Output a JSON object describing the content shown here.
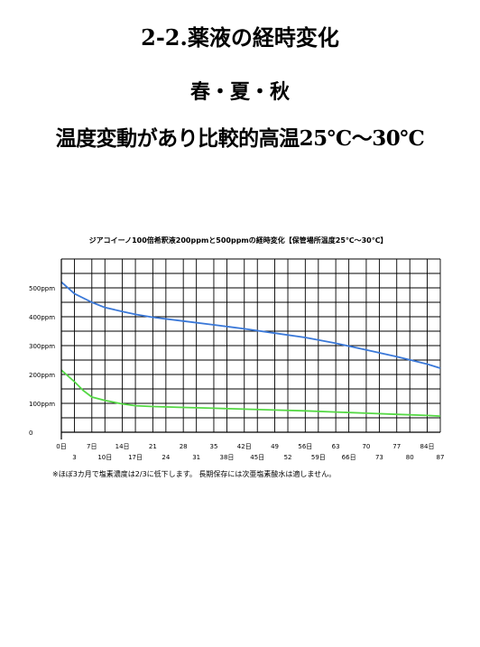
{
  "header": {
    "title": "2-2.薬液の経時変化",
    "season": "春・夏・秋",
    "subtitle": "温度変動があり比較的高温25℃～30℃"
  },
  "chart_data": {
    "type": "line",
    "title": "ジアコイーノ100倍希釈液200ppmと500ppmの経時変化【保管場所温度25℃～30℃】",
    "xlabel": "",
    "ylabel": "",
    "ylim": [
      0,
      600
    ],
    "xlim": [
      0,
      87
    ],
    "yticks": [
      {
        "value": 0,
        "label": "0"
      },
      {
        "value": 100,
        "label": "100ppm"
      },
      {
        "value": 200,
        "label": "200ppm"
      },
      {
        "value": 300,
        "label": "300ppm"
      },
      {
        "value": 400,
        "label": "400ppm"
      },
      {
        "value": 500,
        "label": "500ppm"
      }
    ],
    "xticks_row1": [
      {
        "value": 0,
        "label": "0日"
      },
      {
        "value": 7,
        "label": "7日"
      },
      {
        "value": 14,
        "label": "14日"
      },
      {
        "value": 21,
        "label": "21"
      },
      {
        "value": 28,
        "label": "28"
      },
      {
        "value": 35,
        "label": "35"
      },
      {
        "value": 42,
        "label": "42日"
      },
      {
        "value": 49,
        "label": "49"
      },
      {
        "value": 56,
        "label": "56日"
      },
      {
        "value": 63,
        "label": "63"
      },
      {
        "value": 70,
        "label": "70"
      },
      {
        "value": 77,
        "label": "77"
      },
      {
        "value": 84,
        "label": "84日"
      }
    ],
    "xticks_row2": [
      {
        "value": 3,
        "label": "3"
      },
      {
        "value": 10,
        "label": "10日"
      },
      {
        "value": 17,
        "label": "17日"
      },
      {
        "value": 24,
        "label": "24"
      },
      {
        "value": 31,
        "label": "31"
      },
      {
        "value": 38,
        "label": "38日"
      },
      {
        "value": 45,
        "label": "45日"
      },
      {
        "value": 52,
        "label": "52"
      },
      {
        "value": 59,
        "label": "59日"
      },
      {
        "value": 66,
        "label": "66日"
      },
      {
        "value": 73,
        "label": "73"
      },
      {
        "value": 80,
        "label": "80"
      },
      {
        "value": 87,
        "label": "87"
      }
    ],
    "grid": true,
    "series": [
      {
        "color": "#3a78d8",
        "points": [
          [
            0,
            520
          ],
          [
            3,
            480
          ],
          [
            7,
            450
          ],
          [
            10,
            432
          ],
          [
            14,
            418
          ],
          [
            17,
            408
          ],
          [
            21,
            398
          ],
          [
            28,
            385
          ],
          [
            35,
            372
          ],
          [
            42,
            358
          ],
          [
            49,
            343
          ],
          [
            56,
            328
          ],
          [
            63,
            308
          ],
          [
            70,
            285
          ],
          [
            77,
            262
          ],
          [
            84,
            236
          ],
          [
            87,
            222
          ]
        ]
      },
      {
        "color": "#55d845",
        "points": [
          [
            0,
            215
          ],
          [
            3,
            175
          ],
          [
            5,
            145
          ],
          [
            7,
            122
          ],
          [
            10,
            110
          ],
          [
            14,
            98
          ],
          [
            17,
            92
          ],
          [
            21,
            89
          ],
          [
            28,
            86
          ],
          [
            35,
            83
          ],
          [
            42,
            80
          ],
          [
            49,
            77
          ],
          [
            56,
            74
          ],
          [
            63,
            70
          ],
          [
            70,
            66
          ],
          [
            77,
            62
          ],
          [
            84,
            58
          ],
          [
            87,
            56
          ]
        ]
      }
    ]
  },
  "footnote": "※ほぼ3カ月で塩素濃度は2/3に低下します。 長期保存には次亜塩素酸水は適しません。"
}
